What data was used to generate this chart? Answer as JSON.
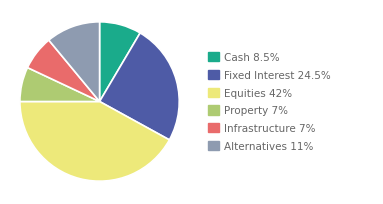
{
  "labels": [
    "Cash 8.5%",
    "Fixed Interest 24.5%",
    "Equities 42%",
    "Property 7%",
    "Infrastructure 7%",
    "Alternatives 11%"
  ],
  "values": [
    8.5,
    24.5,
    42.0,
    7.0,
    7.0,
    11.0
  ],
  "colors": [
    "#1AAB8B",
    "#4E5BA6",
    "#EDE97A",
    "#AECB72",
    "#E96B6B",
    "#8E9BB0"
  ],
  "startangle": 90,
  "background_color": "#ffffff",
  "legend_fontsize": 7.5,
  "figsize": [
    3.83,
    2.05
  ],
  "dpi": 100
}
